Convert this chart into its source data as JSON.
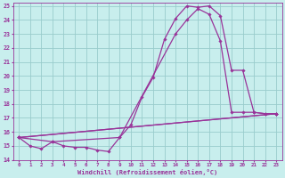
{
  "xlabel": "Windchill (Refroidissement éolien,°C)",
  "bg_color": "#c8eeed",
  "line_color": "#993399",
  "grid_color": "#99cccc",
  "xlim": [
    -0.5,
    23.5
  ],
  "ylim": [
    14,
    25.2
  ],
  "xticks": [
    0,
    1,
    2,
    3,
    4,
    5,
    6,
    7,
    8,
    9,
    10,
    11,
    12,
    13,
    14,
    15,
    16,
    17,
    18,
    19,
    20,
    21,
    22,
    23
  ],
  "yticks": [
    14,
    15,
    16,
    17,
    18,
    19,
    20,
    21,
    22,
    23,
    24,
    25
  ],
  "curve1_x": [
    0,
    1,
    2,
    3,
    4,
    5,
    6,
    7,
    8,
    9,
    10,
    11,
    12,
    13,
    14,
    15,
    16,
    17,
    18,
    19,
    20,
    21,
    22,
    23
  ],
  "curve1_y": [
    15.6,
    15.0,
    14.8,
    15.3,
    15.0,
    14.9,
    14.9,
    14.7,
    14.6,
    15.6,
    16.5,
    18.5,
    19.9,
    22.6,
    24.1,
    25.0,
    24.9,
    25.0,
    24.3,
    20.4,
    20.4,
    17.4,
    17.3,
    17.3
  ],
  "curve2_x": [
    0,
    3,
    9,
    14,
    15,
    16,
    17,
    18,
    19,
    20,
    21,
    22,
    23
  ],
  "curve2_y": [
    15.6,
    15.3,
    15.6,
    23.0,
    24.0,
    24.8,
    24.4,
    22.5,
    17.4,
    17.4,
    17.4,
    17.3,
    17.3
  ],
  "curve3_x": [
    0,
    23
  ],
  "curve3_y": [
    15.6,
    17.3
  ],
  "curve4_x": [
    0,
    23
  ],
  "curve4_y": [
    15.6,
    17.3
  ]
}
